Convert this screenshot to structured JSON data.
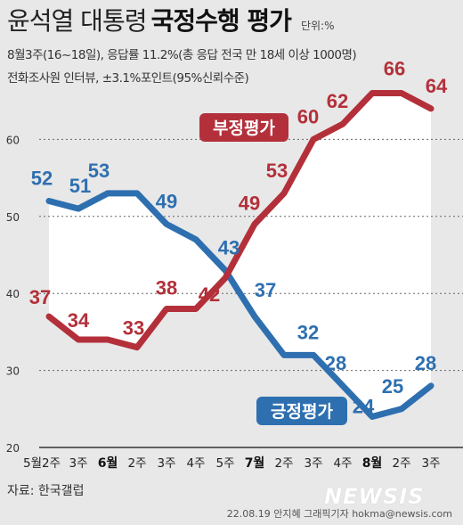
{
  "header": {
    "title_light": "윤석열 대통령",
    "title_bold": "국정수행 평가",
    "unit": "단위:%",
    "subtitle1": "8월3주(16~18일), 응답률 11.2%(총 응답 전국 만 18세 이상 1000명)",
    "subtitle2": "전화조사원 인터뷰, ±3.1%포인트(95%신뢰수준)"
  },
  "footer": {
    "source": "자료: 한국갤럽",
    "credit": "22.08.19 안지혜 그래픽기자 hokma@newsis.com",
    "logo": "NEWSIS"
  },
  "chart_data": {
    "type": "line",
    "title": "윤석열 대통령 국정수행 평가",
    "ylim": [
      20,
      70
    ],
    "yticks": [
      20,
      30,
      40,
      50,
      60
    ],
    "grid": true,
    "x": [
      {
        "label": "5월2주",
        "month": "5월",
        "week": "2주"
      },
      {
        "label": "3주",
        "month": "",
        "week": "3주"
      },
      {
        "label": "6월",
        "month": "6월",
        "week": ""
      },
      {
        "label": "2주",
        "month": "",
        "week": "2주"
      },
      {
        "label": "3주",
        "month": "",
        "week": "3주"
      },
      {
        "label": "4주",
        "month": "",
        "week": "4주"
      },
      {
        "label": "5주",
        "month": "",
        "week": "5주"
      },
      {
        "label": "7월",
        "month": "7월",
        "week": ""
      },
      {
        "label": "2주",
        "month": "",
        "week": "2주"
      },
      {
        "label": "3주",
        "month": "",
        "week": "3주"
      },
      {
        "label": "4주",
        "month": "",
        "week": "4주"
      },
      {
        "label": "8월",
        "month": "8월",
        "week": ""
      },
      {
        "label": "2주",
        "month": "",
        "week": "2주"
      },
      {
        "label": "3주",
        "month": "",
        "week": "3주"
      }
    ],
    "series": [
      {
        "name": "긍정평가",
        "color": "#2e6fb0",
        "label_bg": "#2e6fb0",
        "values": [
          52,
          51,
          53,
          53,
          49,
          47,
          43,
          37,
          32,
          32,
          28,
          24,
          25,
          28
        ],
        "labels": [
          "52",
          "51",
          "53",
          "",
          "49",
          "",
          "43",
          "37",
          "",
          "32",
          "28",
          "24",
          "25",
          "28"
        ]
      },
      {
        "name": "부정평가",
        "color": "#b3303a",
        "label_bg": "#b3303a",
        "values": [
          37,
          34,
          34,
          33,
          38,
          38,
          42,
          49,
          53,
          60,
          62,
          66,
          66,
          64
        ],
        "labels": [
          "37",
          "34",
          "",
          "33",
          "38",
          "",
          "42",
          "49",
          "53",
          "60",
          "62",
          "",
          "66",
          "64"
        ]
      }
    ]
  }
}
